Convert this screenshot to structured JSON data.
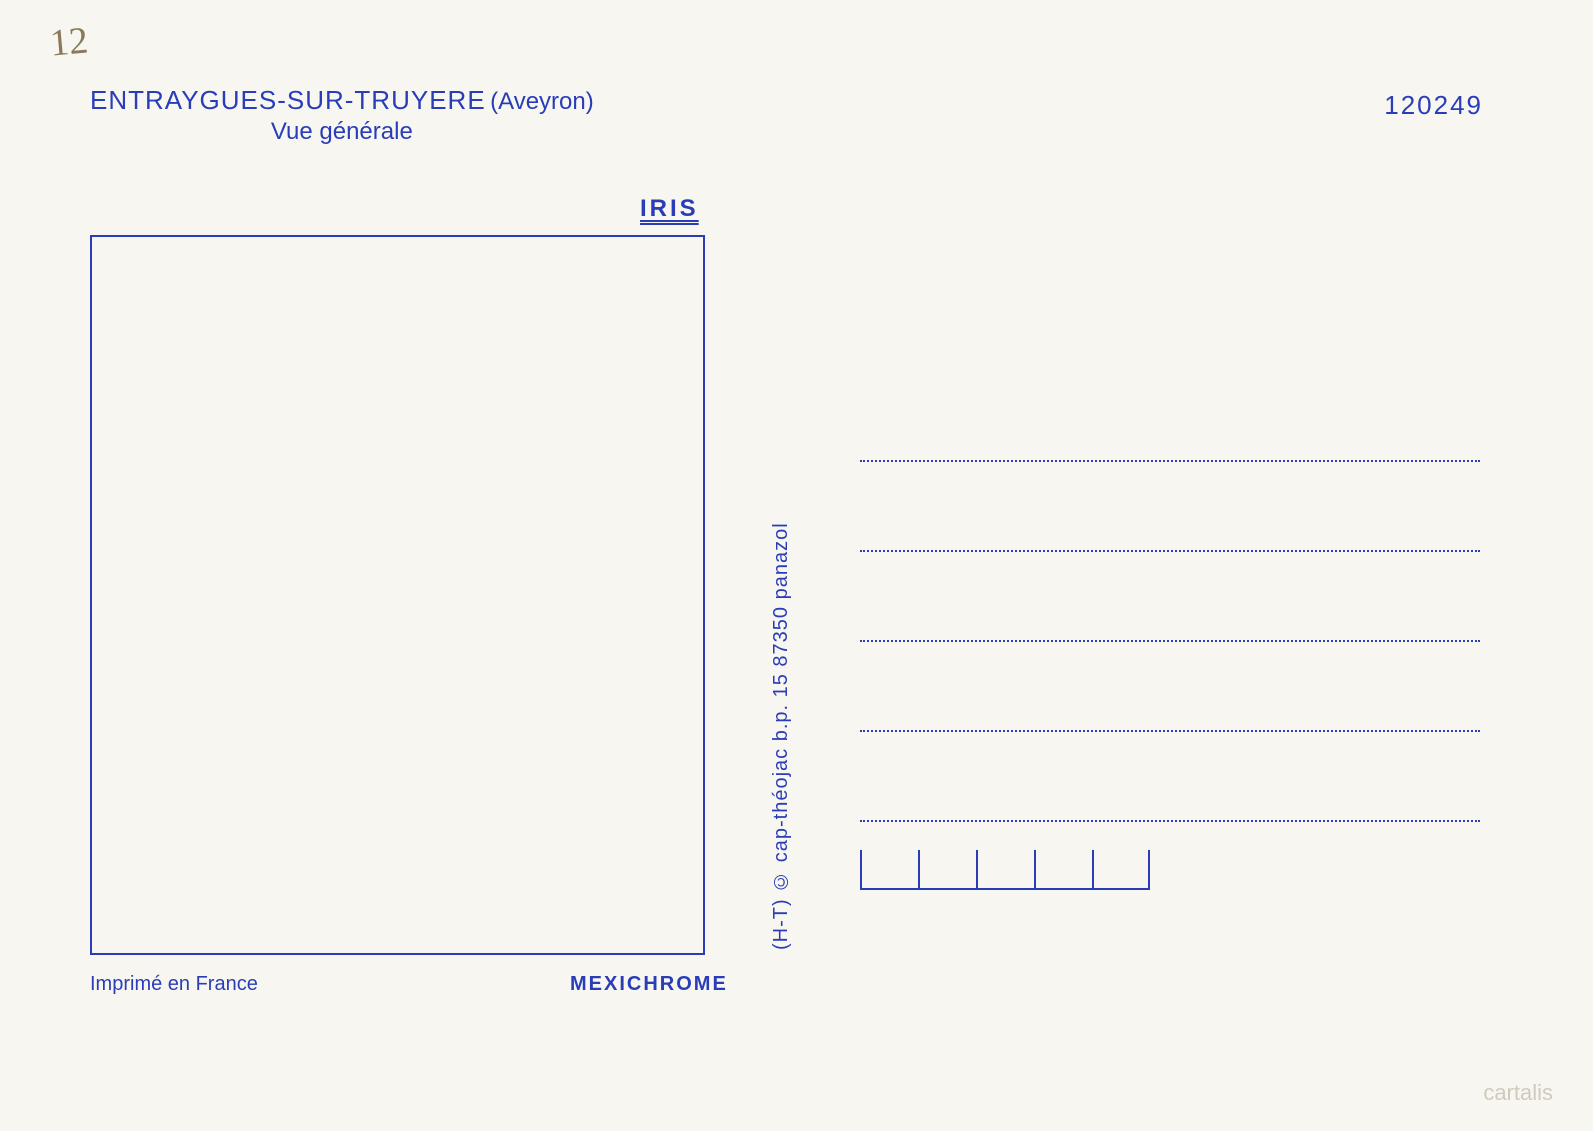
{
  "handwritten_note": "12",
  "title": {
    "main": "ENTRAYGUES-SUR-TRUYERE",
    "region": "(Aveyron)",
    "subtitle": "Vue générale"
  },
  "card_number": "120249",
  "brand_label": "IRIS",
  "publisher_vertical": "(H-T) © cap-théojac b.p. 15  87350 panazol",
  "imprint": "Imprimé en France",
  "process": "MEXICHROME",
  "watermark": "cartalis",
  "colors": {
    "ink": "#2a3db8",
    "background": "#f8f6f0",
    "handwritten": "#8a7a5a",
    "watermark": "#c0b8a8"
  },
  "layout": {
    "address_line_count": 5,
    "postal_box_count": 5
  }
}
